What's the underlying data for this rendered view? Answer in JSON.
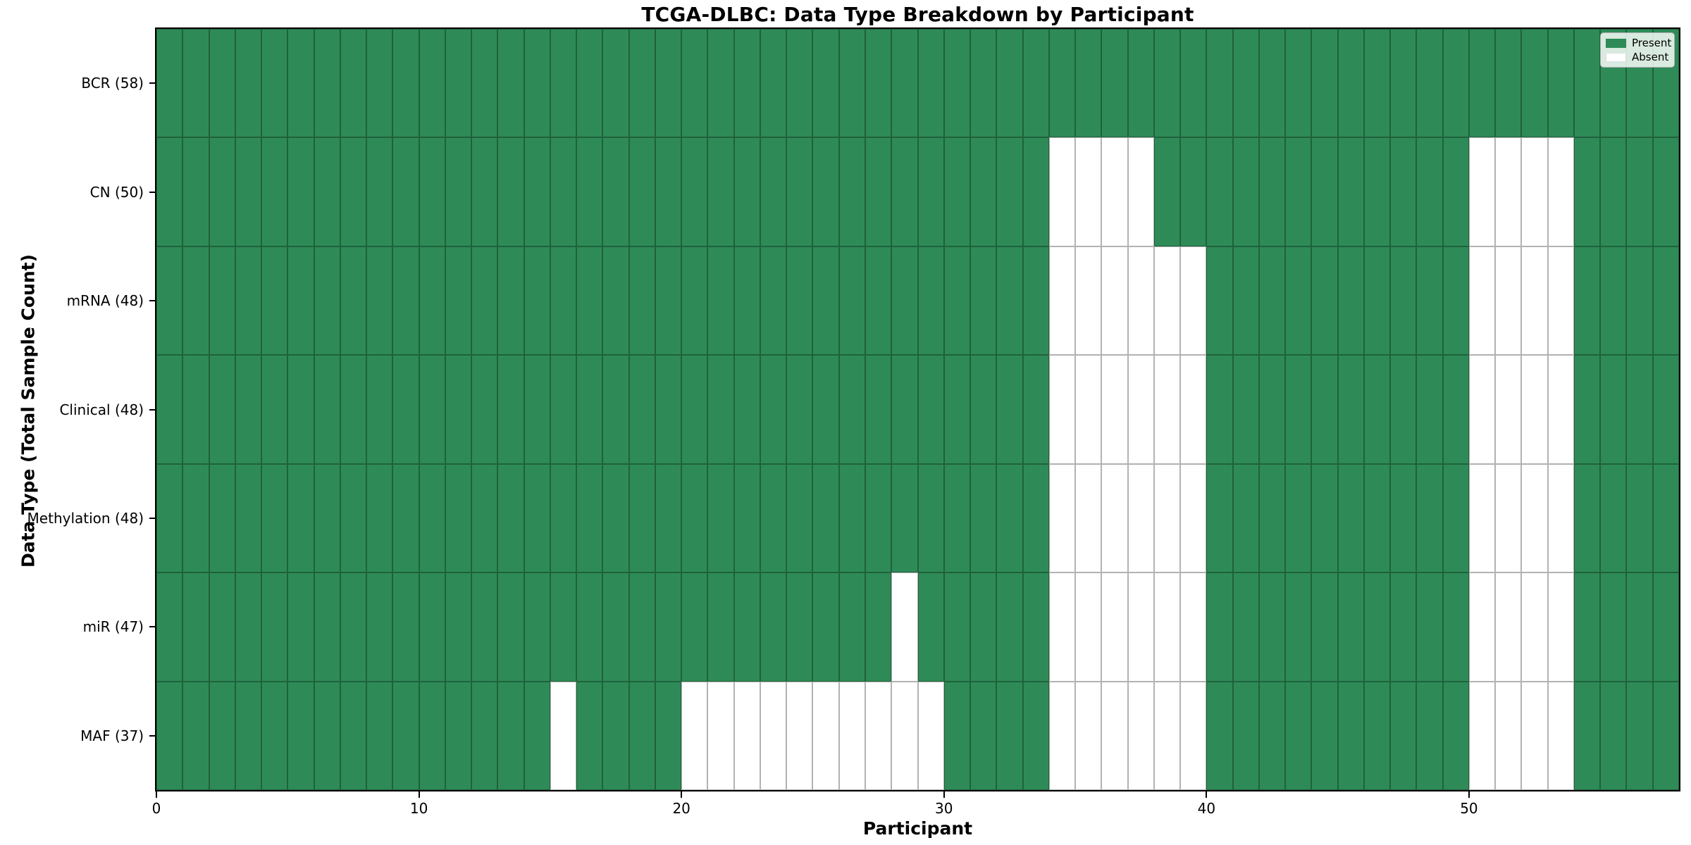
{
  "chart_data": {
    "type": "heatmap",
    "title": "TCGA-DLBC: Data Type Breakdown by Participant",
    "xlabel": "Participant",
    "ylabel": "Data Type (Total Sample Count)",
    "x_ticks": [
      0,
      10,
      20,
      30,
      40,
      50
    ],
    "x_range": [
      0,
      58
    ],
    "n_participants": 58,
    "rows": [
      {
        "label": "BCR (58)",
        "data_type": "BCR",
        "total": 58,
        "absent_participants": []
      },
      {
        "label": "CN (50)",
        "data_type": "CN",
        "total": 50,
        "absent_participants": [
          34,
          35,
          36,
          37,
          50,
          51,
          52,
          53
        ]
      },
      {
        "label": "mRNA (48)",
        "data_type": "mRNA",
        "total": 48,
        "absent_participants": [
          34,
          35,
          36,
          37,
          38,
          39,
          50,
          51,
          52,
          53
        ]
      },
      {
        "label": "Clinical (48)",
        "data_type": "Clinical",
        "total": 48,
        "absent_participants": [
          34,
          35,
          36,
          37,
          38,
          39,
          50,
          51,
          52,
          53
        ]
      },
      {
        "label": "Methylation (48)",
        "data_type": "Methylation",
        "total": 48,
        "absent_participants": [
          34,
          35,
          36,
          37,
          38,
          39,
          50,
          51,
          52,
          53
        ]
      },
      {
        "label": "miR (47)",
        "data_type": "miR",
        "total": 47,
        "absent_participants": [
          28,
          34,
          35,
          36,
          37,
          38,
          39,
          50,
          51,
          52,
          53
        ]
      },
      {
        "label": "MAF (37)",
        "data_type": "MAF",
        "total": 37,
        "absent_participants": [
          15,
          20,
          21,
          22,
          23,
          24,
          25,
          26,
          27,
          28,
          29,
          34,
          35,
          36,
          37,
          38,
          39,
          50,
          51,
          52,
          53
        ]
      }
    ],
    "legend": [
      {
        "label": "Present",
        "color": "#2e8b57"
      },
      {
        "label": "Absent",
        "color": "#ffffff"
      }
    ],
    "colors": {
      "present": "#2e8b57",
      "absent": "#ffffff",
      "cell_edge": "rgba(0,0,0,0.30)",
      "spine": "#000000"
    },
    "legend_position": "upper right",
    "grid": true
  }
}
